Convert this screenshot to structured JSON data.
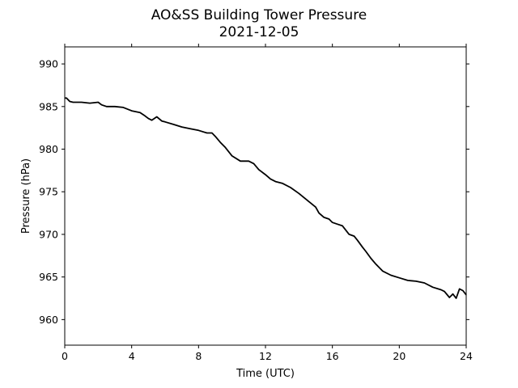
{
  "chart_data": {
    "type": "line",
    "title": "AO&SS Building Tower Pressure",
    "subtitle": "2021-12-05",
    "xlabel": "Time (UTC)",
    "ylabel": "Pressure (hPa)",
    "xlim": [
      0,
      24
    ],
    "ylim": [
      957,
      992
    ],
    "xticks": [
      0,
      4,
      8,
      12,
      16,
      20,
      24
    ],
    "yticks": [
      960,
      965,
      970,
      975,
      980,
      985,
      990
    ],
    "grid": false,
    "legend": "none",
    "line_color": "#000000",
    "series": [
      {
        "x": [
          0.0,
          0.1,
          0.3,
          0.5,
          1.0,
          1.5,
          2.0,
          2.2,
          2.5,
          3.0,
          3.5,
          4.0,
          4.5,
          4.8,
          5.0,
          5.2,
          5.5,
          5.8,
          6.0,
          6.5,
          7.0,
          7.5,
          8.0,
          8.5,
          8.8,
          9.0,
          9.3,
          9.6,
          10.0,
          10.5,
          11.0,
          11.3,
          11.6,
          12.0,
          12.3,
          12.6,
          13.0,
          13.5,
          14.0,
          14.5,
          15.0,
          15.2,
          15.5,
          15.8,
          16.0,
          16.3,
          16.6,
          16.8,
          17.0,
          17.3,
          17.5,
          17.8,
          18.0,
          18.3,
          18.6,
          19.0,
          19.5,
          20.0,
          20.5,
          21.0,
          21.5,
          22.0,
          22.5,
          22.7,
          23.0,
          23.2,
          23.4,
          23.6,
          23.8,
          24.0
        ],
        "values": [
          986.0,
          986.0,
          985.6,
          985.5,
          985.5,
          985.4,
          985.5,
          985.2,
          985.0,
          985.0,
          984.9,
          984.5,
          984.3,
          983.9,
          983.6,
          983.4,
          983.8,
          983.3,
          983.2,
          982.9,
          982.6,
          982.4,
          982.2,
          981.9,
          981.9,
          981.5,
          980.8,
          980.2,
          979.2,
          978.6,
          978.6,
          978.3,
          977.6,
          977.0,
          976.5,
          976.2,
          976.0,
          975.5,
          974.8,
          974.0,
          973.2,
          972.5,
          972.0,
          971.8,
          971.4,
          971.2,
          971.0,
          970.5,
          970.0,
          969.8,
          969.3,
          968.5,
          968.0,
          967.2,
          966.5,
          965.7,
          965.2,
          964.9,
          964.6,
          964.5,
          964.3,
          963.8,
          963.5,
          963.3,
          962.6,
          963.0,
          962.5,
          963.6,
          963.4,
          962.9
        ]
      }
    ]
  }
}
